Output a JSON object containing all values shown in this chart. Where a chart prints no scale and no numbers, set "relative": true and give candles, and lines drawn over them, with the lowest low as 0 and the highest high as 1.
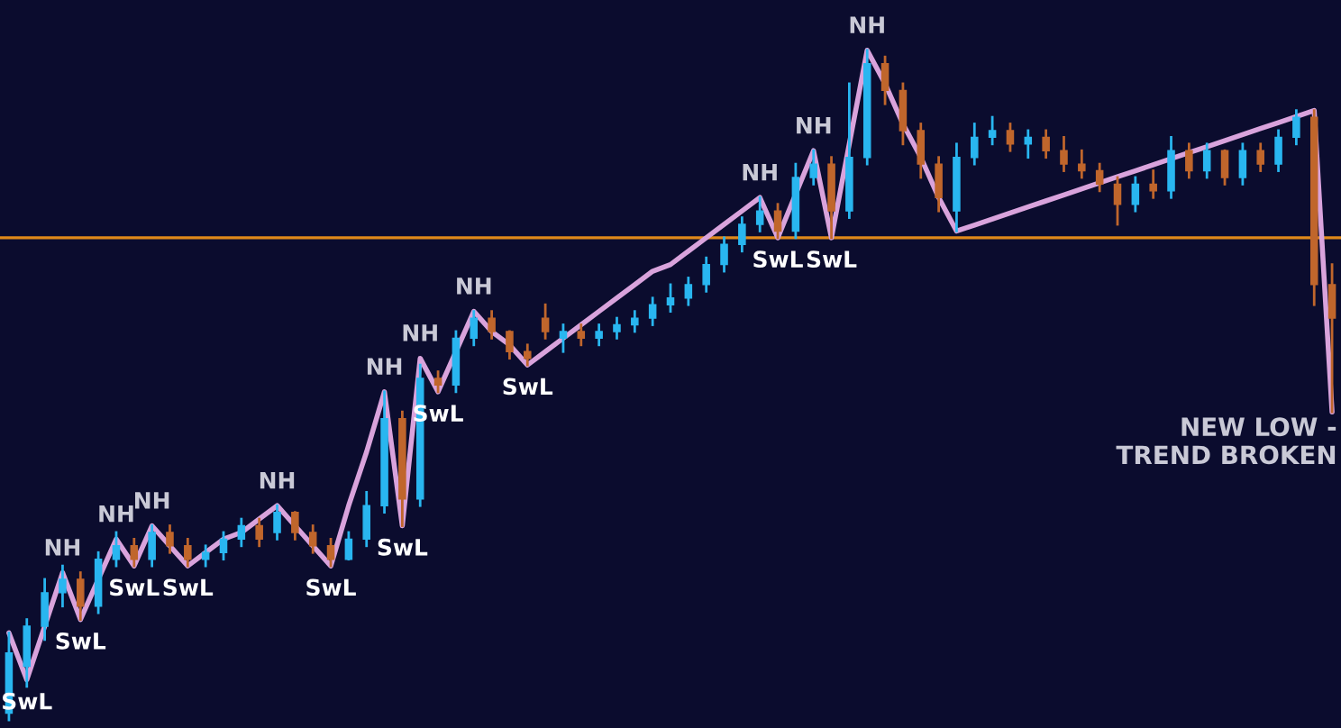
{
  "chart_data": [
    {
      "type": "candlestick",
      "relative": true,
      "tick_labels": false,
      "categories": [
        null,
        null,
        null,
        null,
        null,
        null,
        null,
        null,
        null,
        null,
        null,
        null,
        null,
        null,
        null,
        null,
        null,
        null,
        null,
        null,
        null,
        null,
        null,
        null,
        null,
        null,
        null,
        null,
        null,
        null,
        null,
        null,
        null,
        null,
        null,
        null,
        null,
        null,
        null,
        null,
        null,
        null,
        null,
        null,
        null,
        null,
        null,
        null,
        null,
        null,
        null,
        null,
        null,
        null,
        null,
        null,
        null,
        null,
        null,
        null,
        null,
        null,
        null,
        null,
        null,
        null,
        null,
        null,
        null,
        null,
        null,
        null,
        null,
        null,
        null
      ],
      "ohlc": [
        [
          0.01,
          0.13,
          0.0,
          0.1
        ],
        [
          0.08,
          0.15,
          0.05,
          0.14
        ],
        [
          0.14,
          0.21,
          0.12,
          0.19
        ],
        [
          0.19,
          0.23,
          0.17,
          0.21
        ],
        [
          0.21,
          0.22,
          0.15,
          0.17
        ],
        [
          0.17,
          0.25,
          0.16,
          0.24
        ],
        [
          0.24,
          0.28,
          0.23,
          0.26
        ],
        [
          0.26,
          0.27,
          0.23,
          0.24
        ],
        [
          0.24,
          0.29,
          0.23,
          0.28
        ],
        [
          0.28,
          0.29,
          0.25,
          0.26
        ],
        [
          0.26,
          0.27,
          0.23,
          0.24
        ],
        [
          0.24,
          0.26,
          0.23,
          0.25
        ],
        [
          0.25,
          0.28,
          0.24,
          0.27
        ],
        [
          0.27,
          0.3,
          0.26,
          0.29
        ],
        [
          0.29,
          0.3,
          0.26,
          0.27
        ],
        [
          0.28,
          0.32,
          0.27,
          0.31
        ],
        [
          0.31,
          0.31,
          0.27,
          0.28
        ],
        [
          0.28,
          0.29,
          0.25,
          0.26
        ],
        [
          0.26,
          0.27,
          0.23,
          0.24
        ],
        [
          0.24,
          0.28,
          0.24,
          0.27
        ],
        [
          0.27,
          0.34,
          0.26,
          0.32
        ],
        [
          0.32,
          0.49,
          0.31,
          0.45
        ],
        [
          0.45,
          0.46,
          0.29,
          0.33
        ],
        [
          0.33,
          0.53,
          0.32,
          0.51
        ],
        [
          0.51,
          0.52,
          0.49,
          0.5
        ],
        [
          0.5,
          0.58,
          0.49,
          0.57
        ],
        [
          0.57,
          0.61,
          0.56,
          0.6
        ],
        [
          0.6,
          0.61,
          0.57,
          0.58
        ],
        [
          0.58,
          0.58,
          0.54,
          0.55
        ],
        [
          0.55,
          0.56,
          0.53,
          0.54
        ],
        [
          0.6,
          0.62,
          0.57,
          0.58
        ],
        [
          0.57,
          0.59,
          0.55,
          0.58
        ],
        [
          0.58,
          0.59,
          0.56,
          0.57
        ],
        [
          0.57,
          0.59,
          0.56,
          0.58
        ],
        [
          0.58,
          0.6,
          0.57,
          0.59
        ],
        [
          0.59,
          0.61,
          0.58,
          0.6
        ],
        [
          0.6,
          0.63,
          0.59,
          0.62
        ],
        [
          0.62,
          0.65,
          0.61,
          0.63
        ],
        [
          0.63,
          0.66,
          0.62,
          0.65
        ],
        [
          0.65,
          0.69,
          0.64,
          0.68
        ],
        [
          0.68,
          0.72,
          0.67,
          0.71
        ],
        [
          0.71,
          0.75,
          0.7,
          0.74
        ],
        [
          0.74,
          0.78,
          0.73,
          0.76
        ],
        [
          0.76,
          0.77,
          0.72,
          0.73
        ],
        [
          0.73,
          0.83,
          0.72,
          0.81
        ],
        [
          0.81,
          0.85,
          0.8,
          0.83
        ],
        [
          0.83,
          0.84,
          0.72,
          0.76
        ],
        [
          0.76,
          0.95,
          0.75,
          0.84
        ],
        [
          0.84,
          1.0,
          0.83,
          0.98
        ],
        [
          0.98,
          0.99,
          0.92,
          0.94
        ],
        [
          0.94,
          0.95,
          0.86,
          0.88
        ],
        [
          0.88,
          0.89,
          0.81,
          0.83
        ],
        [
          0.83,
          0.84,
          0.76,
          0.78
        ],
        [
          0.76,
          0.86,
          0.73,
          0.84
        ],
        [
          0.84,
          0.89,
          0.83,
          0.87
        ],
        [
          0.87,
          0.9,
          0.86,
          0.88
        ],
        [
          0.88,
          0.89,
          0.85,
          0.86
        ],
        [
          0.86,
          0.88,
          0.84,
          0.87
        ],
        [
          0.87,
          0.88,
          0.84,
          0.85
        ],
        [
          0.85,
          0.87,
          0.82,
          0.83
        ],
        [
          0.83,
          0.85,
          0.81,
          0.82
        ],
        [
          0.82,
          0.83,
          0.79,
          0.8
        ],
        [
          0.8,
          0.81,
          0.74,
          0.77
        ],
        [
          0.77,
          0.81,
          0.76,
          0.8
        ],
        [
          0.8,
          0.82,
          0.78,
          0.79
        ],
        [
          0.79,
          0.87,
          0.78,
          0.85
        ],
        [
          0.85,
          0.86,
          0.81,
          0.82
        ],
        [
          0.82,
          0.86,
          0.81,
          0.85
        ],
        [
          0.85,
          0.85,
          0.8,
          0.81
        ],
        [
          0.81,
          0.86,
          0.8,
          0.85
        ],
        [
          0.85,
          0.86,
          0.82,
          0.83
        ],
        [
          0.83,
          0.88,
          0.82,
          0.87
        ],
        [
          0.87,
          0.91,
          0.86,
          0.9
        ],
        [
          0.9,
          0.91,
          0.62,
          0.65
        ],
        [
          0.65,
          0.68,
          0.46,
          0.6
        ]
      ],
      "colors": [
        "#29b6f0",
        "#29b6f0",
        "#29b6f0",
        "#29b6f0",
        "#c0662c",
        "#29b6f0",
        "#29b6f0",
        "#c0662c",
        "#29b6f0",
        "#c0662c",
        "#c0662c",
        "#29b6f0",
        "#29b6f0",
        "#29b6f0",
        "#c0662c",
        "#29b6f0",
        "#c0662c",
        "#c0662c",
        "#c0662c",
        "#29b6f0",
        "#29b6f0",
        "#29b6f0",
        "#c0662c",
        "#29b6f0",
        "#c0662c",
        "#29b6f0",
        "#29b6f0",
        "#c0662c",
        "#c0662c",
        "#c0662c",
        "#c0662c",
        "#29b6f0",
        "#c0662c",
        "#29b6f0",
        "#29b6f0",
        "#29b6f0",
        "#29b6f0",
        "#29b6f0",
        "#29b6f0",
        "#29b6f0",
        "#29b6f0",
        "#29b6f0",
        "#29b6f0",
        "#c0662c",
        "#29b6f0",
        "#29b6f0",
        "#c0662c",
        "#29b6f0",
        "#29b6f0",
        "#c0662c",
        "#c0662c",
        "#c0662c",
        "#c0662c",
        "#29b6f0",
        "#29b6f0",
        "#29b6f0",
        "#c0662c",
        "#29b6f0",
        "#c0662c",
        "#c0662c",
        "#c0662c",
        "#c0662c",
        "#c0662c",
        "#29b6f0",
        "#c0662c",
        "#29b6f0",
        "#c0662c",
        "#29b6f0",
        "#c0662c",
        "#29b6f0",
        "#c0662c",
        "#29b6f0",
        "#29b6f0",
        "#c0662c",
        "#c0662c"
      ],
      "series": [
        {
          "type": "line",
          "color": "#d9a3dc",
          "values": [
            0.13,
            0.06,
            0.14,
            0.22,
            0.15,
            0.21,
            0.27,
            0.23,
            0.29,
            0.26,
            0.23,
            0.25,
            0.27,
            0.28,
            0.3,
            0.32,
            0.29,
            0.26,
            0.23,
            0.32,
            0.4,
            0.49,
            0.29,
            0.54,
            0.49,
            0.55,
            0.61,
            0.58,
            0.56,
            0.53,
            0.55,
            0.57,
            0.59,
            0.61,
            0.63,
            0.65,
            0.67,
            0.68,
            0.7,
            0.72,
            0.74,
            0.76,
            0.78,
            0.72,
            0.785,
            0.85,
            0.72,
            0.86,
            1.0,
            0.95,
            0.89,
            0.84,
            0.78,
            0.73,
            0.739,
            0.748,
            0.757,
            0.766,
            0.775,
            0.784,
            0.793,
            0.802,
            0.811,
            0.82,
            0.829,
            0.838,
            0.847,
            0.856,
            0.865,
            0.874,
            0.883,
            0.892,
            0.901,
            0.91,
            0.46
          ]
        }
      ],
      "ref_lines": [
        {
          "axis": "y",
          "value": 0.72,
          "color": "#e0891a"
        }
      ],
      "annotations": [
        {
          "text": "SwL",
          "y": 0.06
        },
        {
          "text": "NH",
          "y": 0.22
        },
        {
          "text": "SwL",
          "y": 0.15
        },
        {
          "text": "NH",
          "y": 0.27
        },
        {
          "text": "SwL",
          "y": 0.23
        },
        {
          "text": "NH",
          "y": 0.29
        },
        {
          "text": "SwL",
          "y": 0.23
        },
        {
          "text": "NH",
          "y": 0.32
        },
        {
          "text": "SwL",
          "y": 0.23
        },
        {
          "text": "NH",
          "y": 0.49
        },
        {
          "text": "SwL",
          "y": 0.29
        },
        {
          "text": "NH",
          "y": 0.54
        },
        {
          "text": "SwL",
          "y": 0.49
        },
        {
          "text": "NH",
          "y": 0.61
        },
        {
          "text": "SwL",
          "y": 0.53
        },
        {
          "text": "NH",
          "y": 0.78
        },
        {
          "text": "SwL",
          "y": 0.72
        },
        {
          "text": "NH",
          "y": 0.85
        },
        {
          "text": "SwL",
          "y": 0.72
        },
        {
          "text": "NH",
          "y": 1.0
        },
        "NEW LOW -\nTREND BROKEN"
      ]
    }
  ]
}
